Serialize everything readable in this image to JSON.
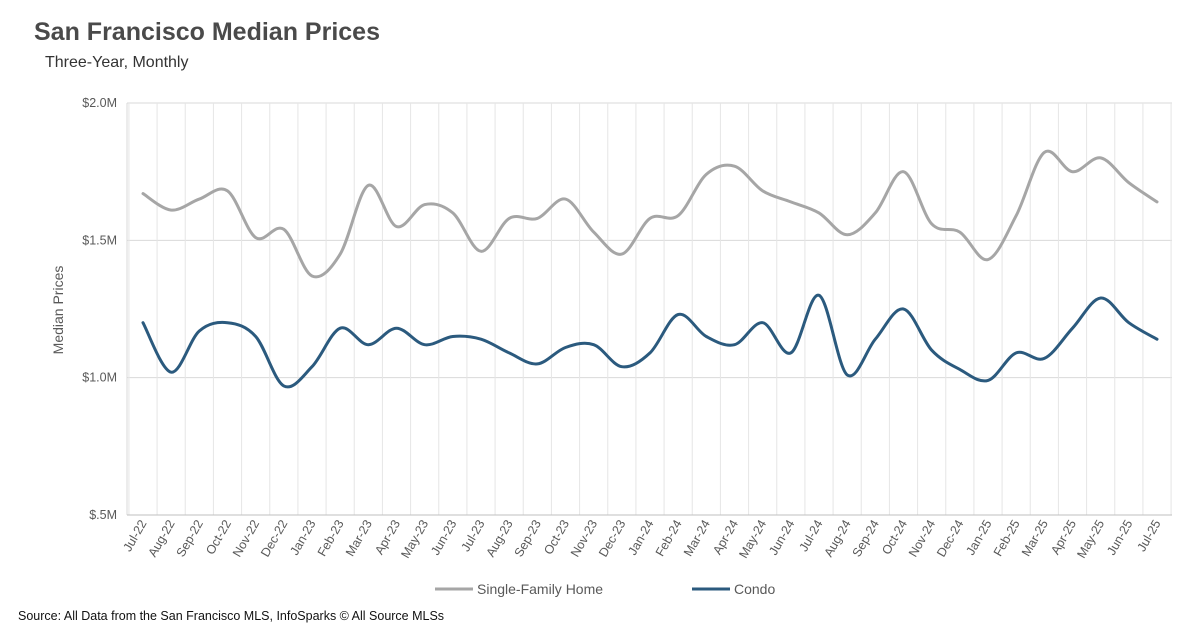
{
  "chart_data": {
    "type": "line",
    "title": "San Francisco Median Prices",
    "subtitle": "Three-Year, Monthly",
    "ylabel": "Median Prices",
    "xlabel": "",
    "ylim": [
      0.5,
      2.0
    ],
    "yticks": [
      2.0,
      1.5,
      1.0,
      0.5
    ],
    "ytick_labels": [
      "$2.0M",
      "$1.5M",
      "$1.0M",
      "$.5M"
    ],
    "categories": [
      "Jul-22",
      "Aug-22",
      "Sep-22",
      "Oct-22",
      "Nov-22",
      "Dec-22",
      "Jan-23",
      "Feb-23",
      "Mar-23",
      "Apr-23",
      "May-23",
      "Jun-23",
      "Jul-23",
      "Aug-23",
      "Sep-23",
      "Oct-23",
      "Nov-23",
      "Dec-23",
      "Jan-24",
      "Feb-24",
      "Mar-24",
      "Apr-24",
      "May-24",
      "Jun-24",
      "Jul-24",
      "Aug-24",
      "Sep-24",
      "Oct-24",
      "Nov-24",
      "Dec-24",
      "Jan-25",
      "Feb-25",
      "Mar-25",
      "Apr-25",
      "May-25",
      "Jun-25",
      "Jul-25"
    ],
    "series": [
      {
        "name": "Single-Family Home",
        "color": "#a6a6a6",
        "values": [
          1.67,
          1.61,
          1.65,
          1.68,
          1.51,
          1.54,
          1.37,
          1.45,
          1.7,
          1.55,
          1.63,
          1.6,
          1.46,
          1.58,
          1.58,
          1.65,
          1.53,
          1.45,
          1.58,
          1.59,
          1.74,
          1.77,
          1.68,
          1.64,
          1.6,
          1.52,
          1.6,
          1.75,
          1.56,
          1.53,
          1.43,
          1.59,
          1.82,
          1.75,
          1.8,
          1.71,
          1.64
        ]
      },
      {
        "name": "Condo",
        "color": "#2b5a7e",
        "values": [
          1.2,
          1.02,
          1.17,
          1.2,
          1.15,
          0.97,
          1.04,
          1.18,
          1.12,
          1.18,
          1.12,
          1.15,
          1.14,
          1.09,
          1.05,
          1.11,
          1.12,
          1.04,
          1.09,
          1.23,
          1.15,
          1.12,
          1.2,
          1.09,
          1.3,
          1.01,
          1.14,
          1.25,
          1.1,
          1.03,
          0.99,
          1.09,
          1.07,
          1.18,
          1.29,
          1.2,
          1.14
        ]
      }
    ],
    "legend_position": "bottom",
    "grid": true
  },
  "source": "Source: All Data from the San Francisco MLS, InfoSparks © All Source MLSs"
}
